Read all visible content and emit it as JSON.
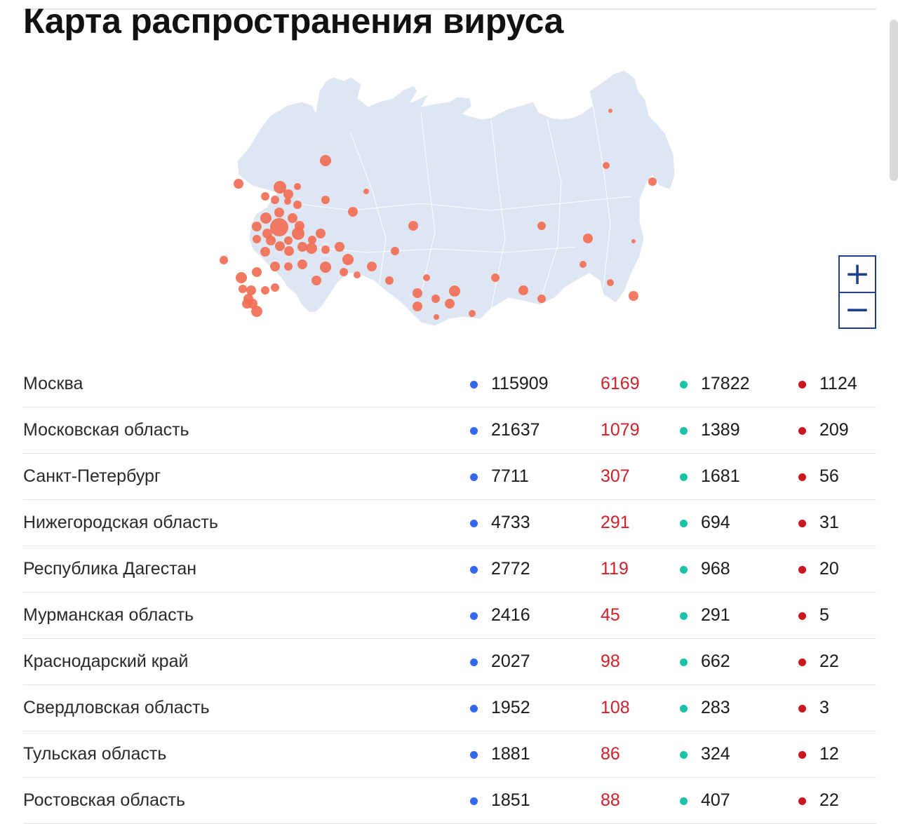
{
  "page": {
    "title": "Карта распространения вируса"
  },
  "zoom": {
    "plus_label": "+",
    "minus_label": "−"
  },
  "colors": {
    "map_land": "#dfe6f3",
    "map_marker": "#f26b51",
    "cases_dot": "#3466f0",
    "new_cases": "#d0202a",
    "recovered_dot": "#19c2a2",
    "deaths_dot": "#c8171e",
    "zoom_border": "#1e3f8f"
  },
  "icons": {
    "cases": "blue-dot-icon",
    "recovered": "teal-dot-icon",
    "deaths": "red-dot-icon",
    "zoom_in": "plus-icon",
    "zoom_out": "minus-icon"
  },
  "regions": [
    {
      "name": "Москва",
      "cases": "115909",
      "new": "6169",
      "recovered": "17822",
      "deaths": "1124"
    },
    {
      "name": "Московская область",
      "cases": "21637",
      "new": "1079",
      "recovered": "1389",
      "deaths": "209"
    },
    {
      "name": "Санкт-Петербург",
      "cases": "7711",
      "new": "307",
      "recovered": "1681",
      "deaths": "56"
    },
    {
      "name": "Нижегородская область",
      "cases": "4733",
      "new": "291",
      "recovered": "694",
      "deaths": "31"
    },
    {
      "name": "Республика Дагестан",
      "cases": "2772",
      "new": "119",
      "recovered": "968",
      "deaths": "20"
    },
    {
      "name": "Мурманская область",
      "cases": "2416",
      "new": "45",
      "recovered": "291",
      "deaths": "5"
    },
    {
      "name": "Краснодарский край",
      "cases": "2027",
      "new": "98",
      "recovered": "662",
      "deaths": "22"
    },
    {
      "name": "Свердловская область",
      "cases": "1952",
      "new": "108",
      "recovered": "283",
      "deaths": "3"
    },
    {
      "name": "Тульская область",
      "cases": "1881",
      "new": "86",
      "recovered": "324",
      "deaths": "12"
    },
    {
      "name": "Ростовская область",
      "cases": "1851",
      "new": "88",
      "recovered": "407",
      "deaths": "22"
    }
  ]
}
